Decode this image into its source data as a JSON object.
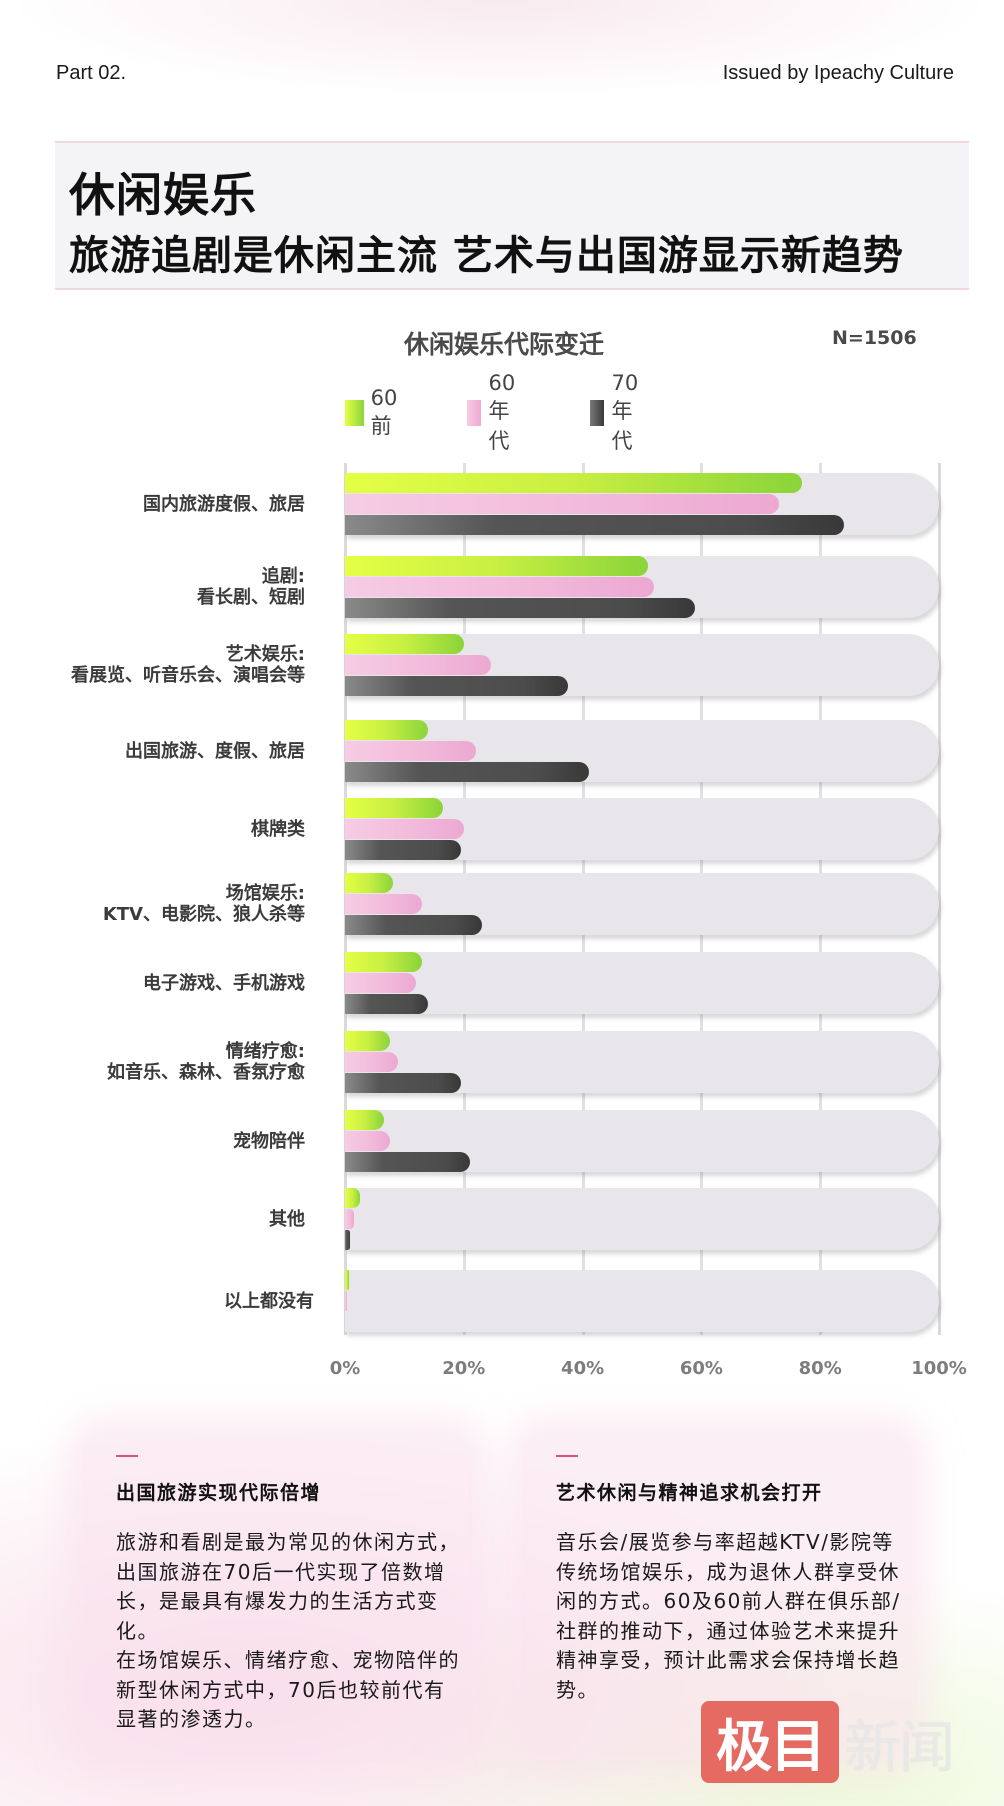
{
  "header": {
    "part": "Part 02.",
    "issuer": "Issued by Ipeachy Culture"
  },
  "title": {
    "main": "休闲娱乐",
    "sub": "旅游追剧是休闲主流 艺术与出国游显示新趋势"
  },
  "chart_data": {
    "type": "bar",
    "orientation": "horizontal",
    "title": "休闲娱乐代际变迁",
    "annotation": "N=1506",
    "xlabel": "",
    "ylabel": "",
    "xlim": [
      0,
      100
    ],
    "x_ticks": [
      "0%",
      "20%",
      "40%",
      "60%",
      "80%",
      "100%"
    ],
    "grid": true,
    "legend_position": "top",
    "categories": [
      "国内旅游度假、旅居",
      "追剧:\n看长剧、短剧",
      "艺术娱乐:\n看展览、听音乐会、演唱会等",
      "出国旅游、度假、旅居",
      "棋牌类",
      "场馆娱乐:\nKTV、电影院、狼人杀等",
      "电子游戏、手机游戏",
      "情绪疗愈:\n如音乐、森林、香氛疗愈",
      "宠物陪伴",
      "其他",
      "以上都没有"
    ],
    "series": [
      {
        "name": "60前",
        "color": "#b5e63e",
        "values": [
          77,
          51,
          20,
          14,
          16.5,
          8,
          13,
          7.5,
          6.5,
          2.5,
          0.6
        ]
      },
      {
        "name": "60年代",
        "color": "#f0b4d8",
        "values": [
          73,
          52,
          24.5,
          22,
          20,
          13,
          12,
          9,
          7.5,
          1.5,
          0.3
        ]
      },
      {
        "name": "70年代",
        "color": "#4a4a4a",
        "values": [
          84,
          59,
          37.5,
          41,
          19.5,
          23,
          14,
          19.5,
          21,
          0.8,
          0
        ]
      }
    ]
  },
  "legend": [
    {
      "label": "60前"
    },
    {
      "label": "60年代"
    },
    {
      "label": "70年代"
    }
  ],
  "cards": [
    {
      "title": "出国旅游实现代际倍增",
      "body": "旅游和看剧是最为常见的休闲方式，出国旅游在70后一代实现了倍数增长，是最具有爆发力的生活方式变化。\n在场馆娱乐、情绪疗愈、宠物陪伴的新型休闲方式中，70后也较前代有显著的渗透力。"
    },
    {
      "title": "艺术休闲与精神追求机会打开",
      "body": "音乐会/展览参与率超越KTV/影院等传统场馆娱乐，成为退休人群享受休闲的方式。60及60前人群在俱乐部/社群的推动下，通过体验艺术来提升精神享受，预计此需求会保持增长趋势。"
    }
  ],
  "watermark": {
    "boxed": "极目",
    "plain": "新闻"
  }
}
